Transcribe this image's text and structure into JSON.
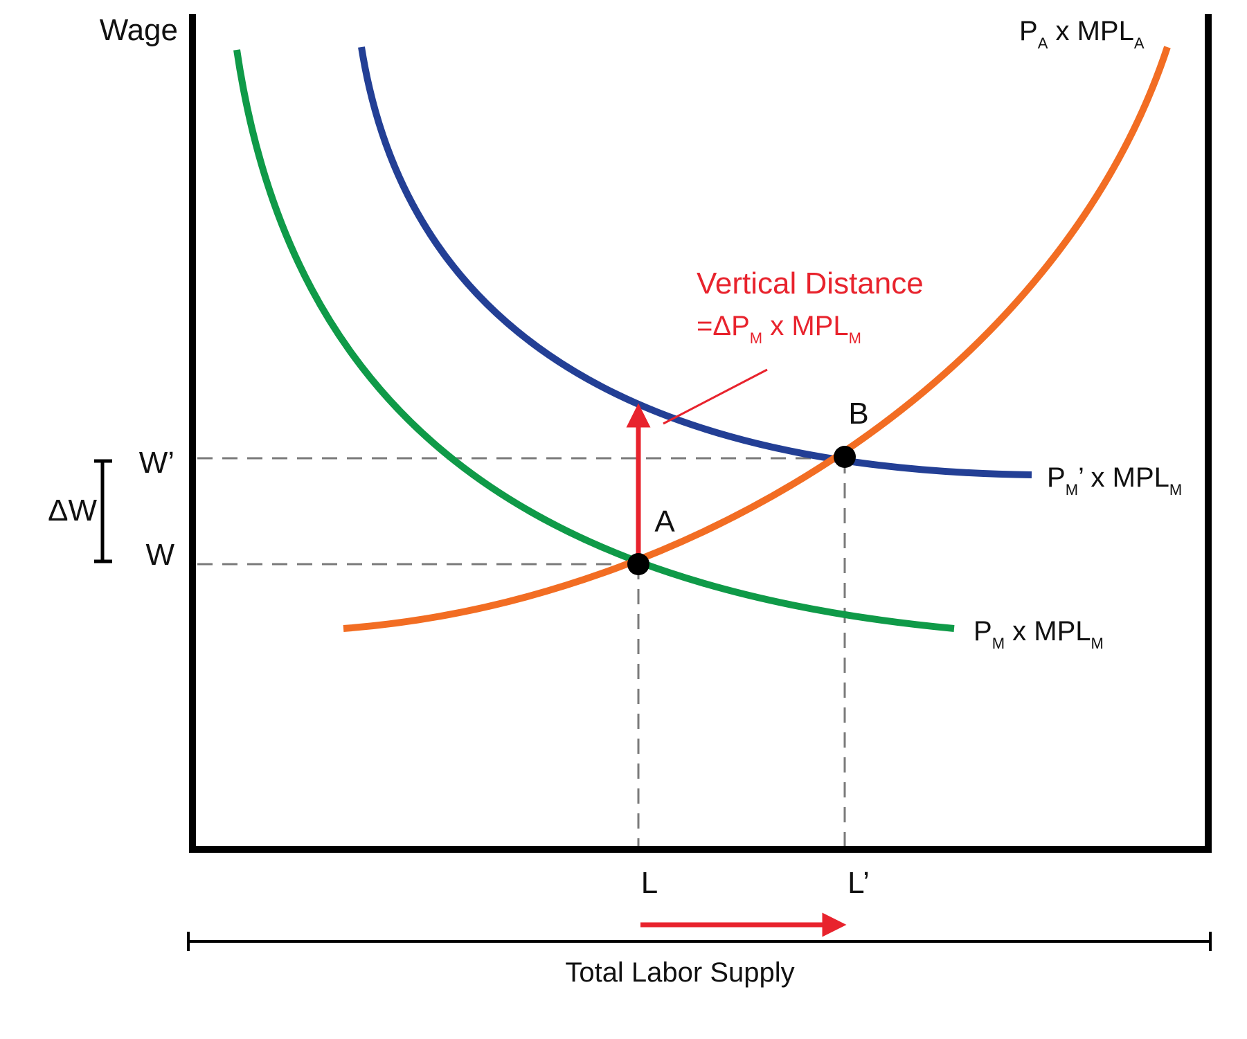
{
  "axes": {
    "y_label": "Wage",
    "x_label": "Total Labor Supply",
    "x_ticks": [
      "L",
      "L’"
    ],
    "y_ticks": [
      "W’",
      "W"
    ],
    "delta_w": "ΔW"
  },
  "curves": {
    "pa": {
      "base": "P",
      "sub1": "A",
      "mid": " x MPL",
      "sub2": "A",
      "color": "#f26d23"
    },
    "pm_prime": {
      "base": "P",
      "sub1": "M",
      "mid": "’ x MPL",
      "sub2": "M",
      "color": "#233f95"
    },
    "pm": {
      "base": "P",
      "sub1": "M",
      "mid": " x MPL",
      "sub2": "M",
      "color": "#0f9a48"
    }
  },
  "points": {
    "a": "A",
    "b": "B"
  },
  "annotation": {
    "title": "Vertical Distance",
    "eq_prefix": "=ΔP",
    "eq_sub1": "M",
    "eq_mid": " x MPL",
    "eq_sub2": "M",
    "color": "#e8232d"
  }
}
